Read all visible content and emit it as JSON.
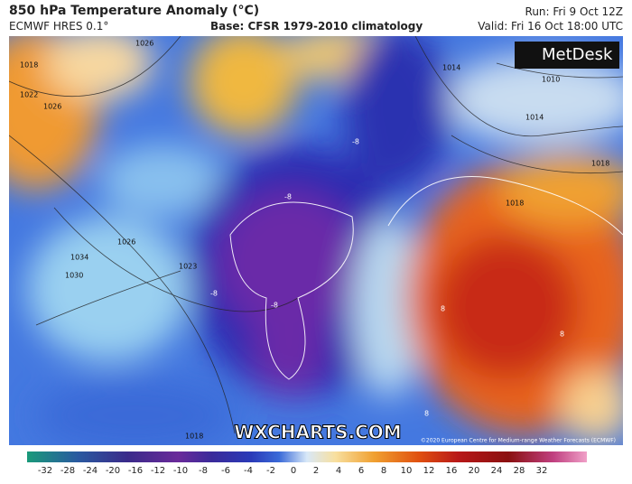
{
  "header": {
    "title": "850 hPa Temperature Anomaly (°C)",
    "model": "ECMWF HRES 0.1°",
    "base": "Base: CFSR 1979-2010 climatology",
    "run": "Run: Fri 9 Oct 12Z",
    "valid": "Valid: Fri 16 Oct 18:00 UTC"
  },
  "map": {
    "logo": "MetDesk",
    "watermark": "WXCHARTS.COM",
    "copyright": "©2020 European Centre for Medium-range Weather Forecasts (ECMWF)",
    "isobar_labels": [
      1018,
      1022,
      1026,
      1026,
      1030,
      1034,
      1026,
      1023,
      1010,
      1014,
      1014,
      1018,
      1018,
      1018
    ],
    "anomaly_labels": [
      -8,
      -8,
      -8,
      -8,
      8,
      8,
      8
    ]
  },
  "colorbar": {
    "ticks": [
      -32,
      -28,
      -24,
      -20,
      -16,
      -12,
      -10,
      -8,
      -6,
      -4,
      -2,
      0,
      2,
      4,
      6,
      8,
      10,
      12,
      16,
      20,
      24,
      28,
      32
    ]
  }
}
